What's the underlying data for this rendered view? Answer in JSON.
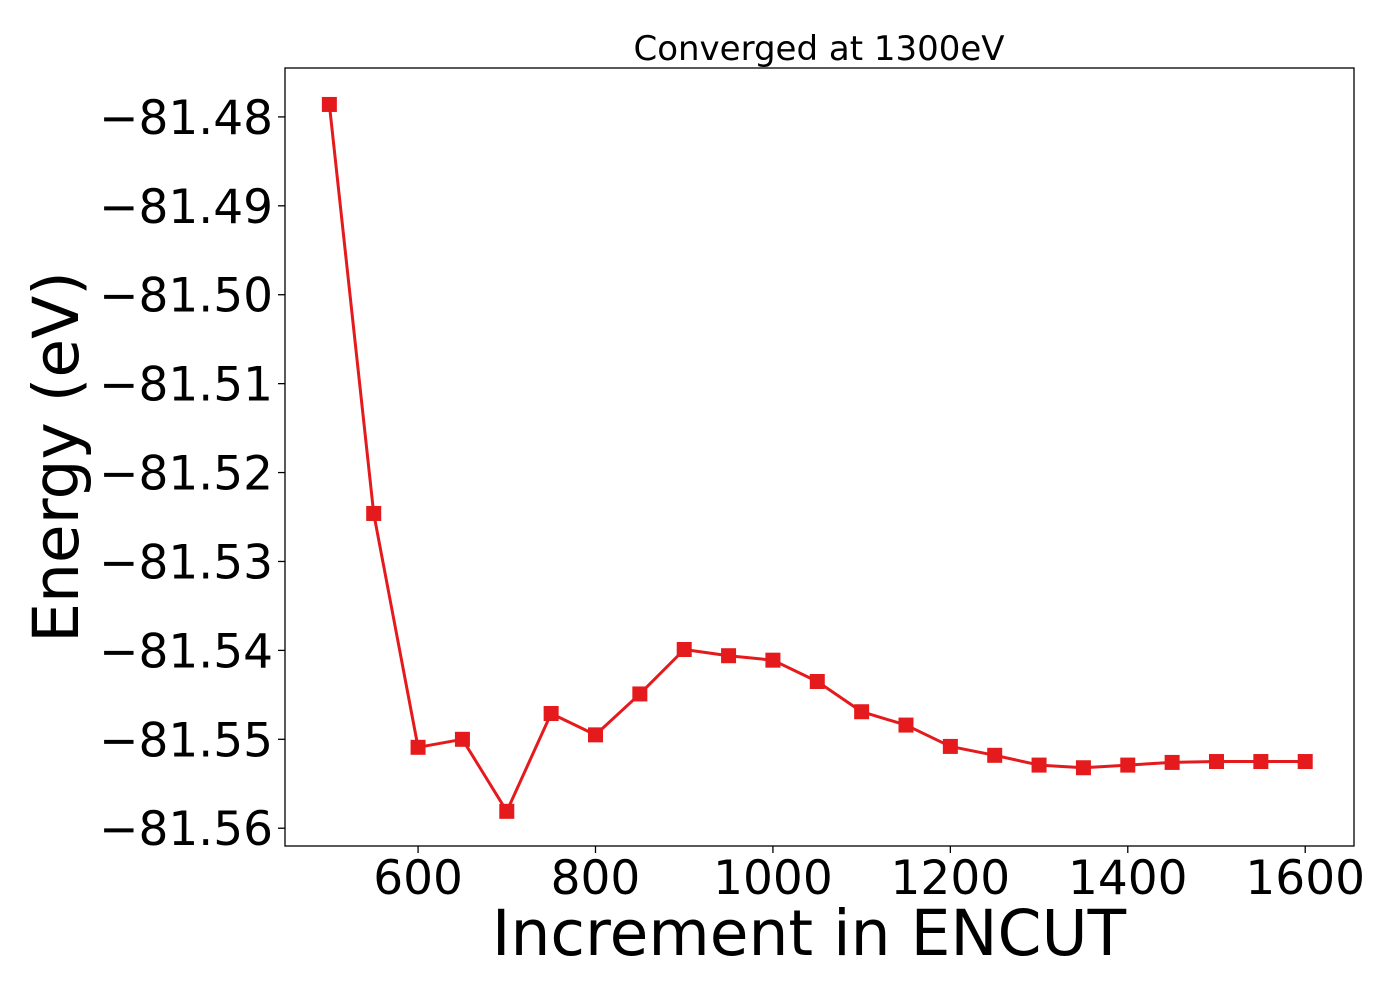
{
  "chart_data": {
    "type": "line",
    "title": "Converged at 1300eV",
    "xlabel": "Increment in ENCUT",
    "ylabel": "Energy (eV)",
    "x": [
      500,
      550,
      600,
      650,
      700,
      750,
      800,
      850,
      900,
      950,
      1000,
      1050,
      1100,
      1150,
      1200,
      1250,
      1300,
      1350,
      1400,
      1450,
      1500,
      1550,
      1600
    ],
    "series": [
      {
        "values": [
          -81.4786,
          -81.5246,
          -81.5509,
          -81.55,
          -81.5581,
          -81.5471,
          -81.5495,
          -81.5449,
          -81.5399,
          -81.5406,
          -81.5411,
          -81.5435,
          -81.5469,
          -81.5484,
          -81.5508,
          -81.5518,
          -81.5529,
          -81.5532,
          -81.5529,
          -81.5526,
          -81.5525,
          -81.5525,
          -81.5525
        ],
        "color": "#e41a1c",
        "marker": "square"
      }
    ],
    "xlim": [
      450,
      1655
    ],
    "ylim": [
      -81.562,
      -81.4745
    ],
    "xticks": [
      600,
      800,
      1000,
      1200,
      1400,
      1600
    ],
    "xtick_labels": [
      "600",
      "800",
      "1000",
      "1200",
      "1400",
      "1600"
    ],
    "yticks": [
      -81.48,
      -81.49,
      -81.5,
      -81.51,
      -81.52,
      -81.53,
      -81.54,
      -81.55,
      -81.56
    ],
    "ytick_labels": [
      "−81.48",
      "−81.49",
      "−81.50",
      "−81.51",
      "−81.52",
      "−81.53",
      "−81.54",
      "−81.55",
      "−81.56"
    ],
    "grid": false,
    "legend": "none"
  }
}
